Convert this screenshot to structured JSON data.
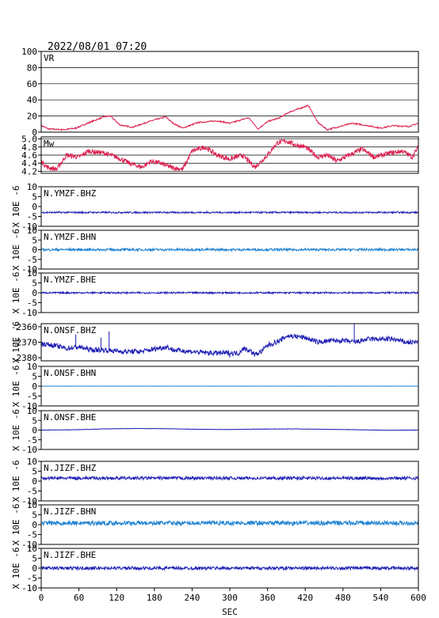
{
  "header": {
    "timestamp": "2022/08/01 07:20"
  },
  "chart_data": {
    "type": "line",
    "x_axis": {
      "label": "SEC",
      "range": [
        0,
        600
      ],
      "ticks": [
        0,
        60,
        120,
        180,
        240,
        300,
        360,
        420,
        480,
        540,
        600
      ],
      "tick_labels": [
        "0",
        "60",
        "120",
        "180",
        "240",
        "300",
        "360",
        "420",
        "480",
        "540",
        "600"
      ]
    },
    "panels": [
      {
        "label": "VR",
        "color": "#dc1e4e",
        "ylim": [
          0,
          100
        ],
        "yticks": [
          0,
          20,
          40,
          60,
          80,
          100
        ],
        "ytick_labels": [
          "0",
          "20",
          "40",
          "60",
          "80",
          "100"
        ],
        "ylabel": "",
        "grid": true,
        "baseline": null,
        "noise": 0.8,
        "spikes": [],
        "points": [
          [
            0,
            8
          ],
          [
            12,
            4
          ],
          [
            35,
            3
          ],
          [
            55,
            5
          ],
          [
            80,
            13
          ],
          [
            100,
            19
          ],
          [
            110,
            20
          ],
          [
            125,
            9
          ],
          [
            145,
            6
          ],
          [
            175,
            14
          ],
          [
            198,
            19
          ],
          [
            210,
            11
          ],
          [
            225,
            5
          ],
          [
            250,
            12
          ],
          [
            280,
            14
          ],
          [
            300,
            11
          ],
          [
            330,
            18
          ],
          [
            345,
            4
          ],
          [
            360,
            13
          ],
          [
            380,
            18
          ],
          [
            395,
            25
          ],
          [
            410,
            29
          ],
          [
            425,
            33
          ],
          [
            440,
            12
          ],
          [
            455,
            3
          ],
          [
            475,
            7
          ],
          [
            495,
            11
          ],
          [
            520,
            8
          ],
          [
            540,
            5
          ],
          [
            560,
            8
          ],
          [
            585,
            7
          ],
          [
            600,
            11
          ]
        ]
      },
      {
        "label": "Mw",
        "color": "#dc1e4e",
        "ylim": [
          4.15,
          5.05
        ],
        "yticks": [
          4.2,
          4.4,
          4.6,
          4.8,
          5.0
        ],
        "ytick_labels": [
          "4.2",
          "4.4",
          "4.6",
          "4.8",
          "5.0"
        ],
        "ylabel": "",
        "grid": true,
        "baseline": null,
        "noise": 0.06,
        "spikes": [],
        "points": [
          [
            0,
            4.45
          ],
          [
            10,
            4.3
          ],
          [
            25,
            4.25
          ],
          [
            40,
            4.6
          ],
          [
            60,
            4.55
          ],
          [
            75,
            4.7
          ],
          [
            100,
            4.65
          ],
          [
            120,
            4.55
          ],
          [
            140,
            4.4
          ],
          [
            160,
            4.3
          ],
          [
            175,
            4.45
          ],
          [
            190,
            4.4
          ],
          [
            205,
            4.3
          ],
          [
            225,
            4.25
          ],
          [
            240,
            4.7
          ],
          [
            260,
            4.8
          ],
          [
            280,
            4.6
          ],
          [
            300,
            4.5
          ],
          [
            320,
            4.6
          ],
          [
            340,
            4.3
          ],
          [
            360,
            4.6
          ],
          [
            375,
            4.9
          ],
          [
            390,
            4.95
          ],
          [
            405,
            4.85
          ],
          [
            420,
            4.8
          ],
          [
            440,
            4.55
          ],
          [
            455,
            4.6
          ],
          [
            470,
            4.45
          ],
          [
            490,
            4.6
          ],
          [
            510,
            4.75
          ],
          [
            530,
            4.55
          ],
          [
            555,
            4.65
          ],
          [
            575,
            4.7
          ],
          [
            590,
            4.55
          ],
          [
            600,
            4.8
          ]
        ]
      },
      {
        "label": "N.YMZF.BHZ",
        "color": "#1e1eb4",
        "ylim": [
          -10,
          10
        ],
        "yticks": [
          -10,
          -5,
          0,
          5,
          10
        ],
        "ytick_labels": [
          "-10",
          "-5",
          "0",
          "5",
          "10"
        ],
        "ylabel": "X 10E -6",
        "grid": false,
        "baseline": -3,
        "noise": 0.4,
        "spikes": [],
        "points": []
      },
      {
        "label": "N.YMZF.BHN",
        "color": "#1e82d2",
        "ylim": [
          -10,
          10
        ],
        "yticks": [
          -10,
          -5,
          0,
          5,
          10
        ],
        "ytick_labels": [
          "-10",
          "-5",
          "0",
          "5",
          "10"
        ],
        "ylabel": "X 10E -6",
        "grid": false,
        "baseline": 0,
        "noise": 0.6,
        "spikes": [],
        "points": []
      },
      {
        "label": "N.YMZF.BHE",
        "color": "#1e1eb4",
        "ylim": [
          -10,
          10
        ],
        "yticks": [
          -10,
          -5,
          0,
          5,
          10
        ],
        "ytick_labels": [
          "-10",
          "-5",
          "0",
          "5",
          "10"
        ],
        "ylabel": "X 10E -6",
        "grid": false,
        "baseline": 0,
        "noise": 0.4,
        "spikes": [],
        "points": []
      },
      {
        "label": "N.ONSF.BHZ",
        "color": "#1e1eb4",
        "ylim": [
          -2382,
          -2358
        ],
        "yticks": [
          -2380,
          -2370,
          -2360
        ],
        "ytick_labels": [
          "-2380",
          "-2370",
          "-2360"
        ],
        "ylabel": "X 10E -6",
        "grid": false,
        "baseline": null,
        "noise": 1.6,
        "spikes": [
          [
            55,
            -2365
          ],
          [
            95,
            -2367
          ],
          [
            108,
            -2363
          ],
          [
            300,
            -2380
          ],
          [
            498,
            -2358
          ]
        ],
        "points": [
          [
            0,
            -2371
          ],
          [
            20,
            -2372
          ],
          [
            40,
            -2374
          ],
          [
            60,
            -2373
          ],
          [
            80,
            -2375
          ],
          [
            100,
            -2375
          ],
          [
            130,
            -2376
          ],
          [
            160,
            -2376
          ],
          [
            185,
            -2374
          ],
          [
            200,
            -2373
          ],
          [
            210,
            -2375
          ],
          [
            240,
            -2376
          ],
          [
            270,
            -2377
          ],
          [
            300,
            -2377
          ],
          [
            315,
            -2377
          ],
          [
            320,
            -2374
          ],
          [
            330,
            -2375
          ],
          [
            340,
            -2378
          ],
          [
            350,
            -2376
          ],
          [
            360,
            -2372
          ],
          [
            380,
            -2369
          ],
          [
            390,
            -2366
          ],
          [
            400,
            -2366
          ],
          [
            420,
            -2367
          ],
          [
            440,
            -2370
          ],
          [
            460,
            -2369
          ],
          [
            480,
            -2369
          ],
          [
            500,
            -2370
          ],
          [
            520,
            -2368
          ],
          [
            540,
            -2368
          ],
          [
            560,
            -2368
          ],
          [
            580,
            -2370
          ],
          [
            600,
            -2370
          ]
        ]
      },
      {
        "label": "N.ONSF.BHN",
        "color": "#1e82d2",
        "ylim": [
          -10,
          10
        ],
        "yticks": [
          -10,
          -5,
          0,
          5,
          10
        ],
        "ytick_labels": [
          "-10",
          "-5",
          "0",
          "5",
          "10"
        ],
        "ylabel": "X 10E -6",
        "grid": false,
        "baseline": 0,
        "noise": 0.05,
        "spikes": [],
        "points": []
      },
      {
        "label": "N.ONSF.BHE",
        "color": "#1e1eb4",
        "ylim": [
          -10,
          10
        ],
        "yticks": [
          -10,
          -5,
          0,
          5,
          10
        ],
        "ytick_labels": [
          "-10",
          "-5",
          "0",
          "5",
          "10"
        ],
        "ylabel": "X 10E -6",
        "grid": false,
        "baseline": null,
        "noise": 0.1,
        "spikes": [],
        "points": [
          [
            0,
            0
          ],
          [
            60,
            0.2
          ],
          [
            100,
            0.6
          ],
          [
            150,
            0.8
          ],
          [
            200,
            0.7
          ],
          [
            250,
            0.4
          ],
          [
            300,
            0.3
          ],
          [
            350,
            0.5
          ],
          [
            400,
            0.6
          ],
          [
            450,
            0.4
          ],
          [
            500,
            0.2
          ],
          [
            550,
            -0.1
          ],
          [
            600,
            0
          ]
        ]
      },
      {
        "label": "N.JIZF.BHZ",
        "color": "#1e1eb4",
        "ylim": [
          -10,
          10
        ],
        "yticks": [
          -10,
          -5,
          0,
          5,
          10
        ],
        "ytick_labels": [
          "-10",
          "-5",
          "0",
          "5",
          "10"
        ],
        "ylabel": "X 10E -6",
        "grid": false,
        "baseline": 1.5,
        "noise": 0.8,
        "spikes": [],
        "points": []
      },
      {
        "label": "N.JIZF.BHN",
        "color": "#1e82d2",
        "ylim": [
          -10,
          10
        ],
        "yticks": [
          -10,
          -5,
          0,
          5,
          10
        ],
        "ytick_labels": [
          "-10",
          "-5",
          "0",
          "5",
          "10"
        ],
        "ylabel": "X 10E -6",
        "grid": false,
        "baseline": 0.8,
        "noise": 1.1,
        "spikes": [],
        "points": []
      },
      {
        "label": "N.JIZF.BHE",
        "color": "#1e1eb4",
        "ylim": [
          -10,
          10
        ],
        "yticks": [
          -10,
          -5,
          0,
          5,
          10
        ],
        "ytick_labels": [
          "-10",
          "-5",
          "0",
          "5",
          "10"
        ],
        "ylabel": "X 10E -6",
        "grid": false,
        "baseline": 0,
        "noise": 0.8,
        "spikes": [],
        "points": []
      }
    ]
  }
}
